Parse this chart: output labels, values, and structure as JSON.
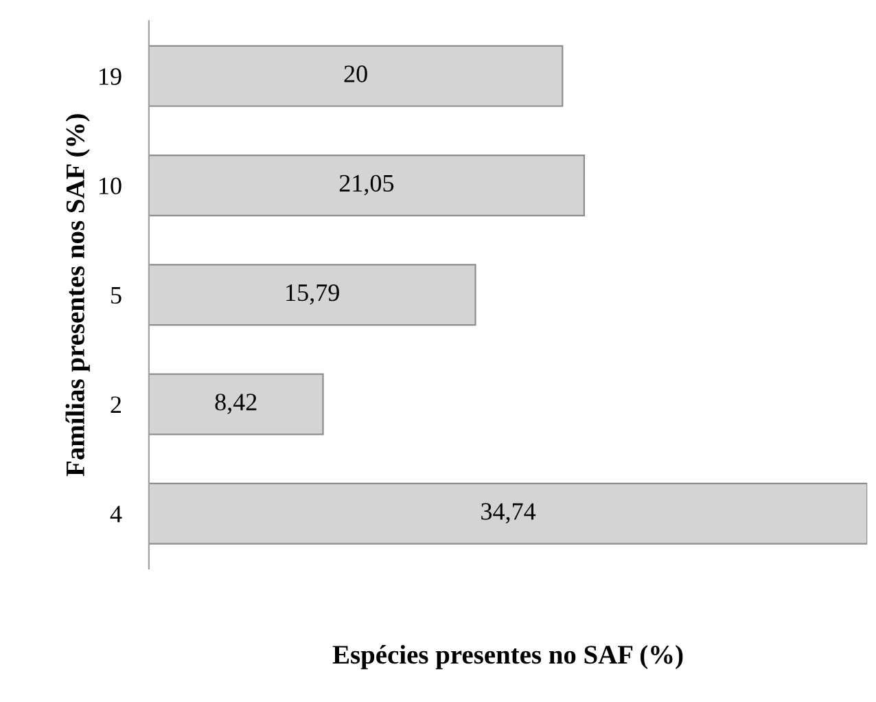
{
  "chart_data": {
    "type": "bar",
    "orientation": "horizontal",
    "xlabel": "Espécies presentes no SAF (%)",
    "ylabel": "Famílias presentes nos SAF (%)",
    "categories": [
      "19",
      "10",
      "5",
      "2",
      "4"
    ],
    "values": [
      20,
      21.05,
      15.79,
      8.42,
      34.74
    ],
    "value_labels": [
      "20",
      "21,05",
      "15,79",
      "8,42",
      "34,74"
    ],
    "color": "#d4d4d4",
    "grid": false,
    "legend": false
  }
}
